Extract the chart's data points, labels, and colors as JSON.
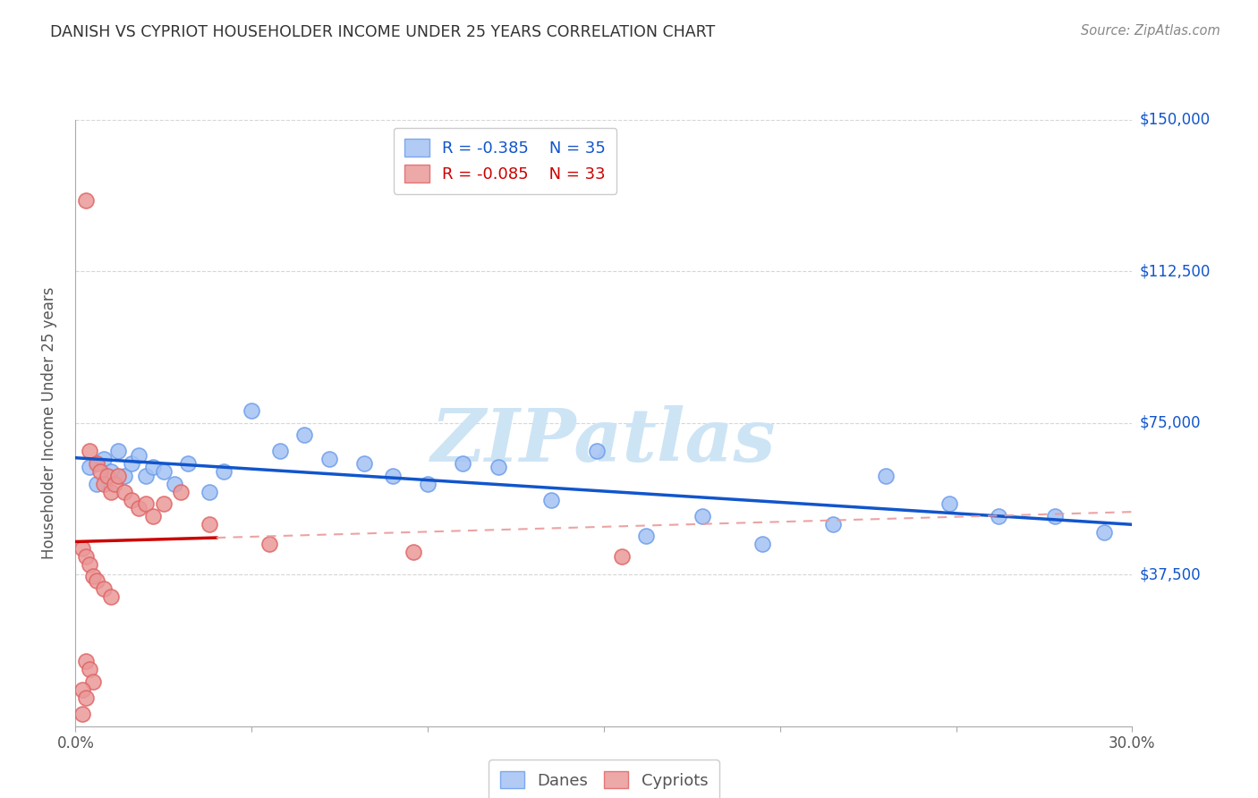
{
  "title": "DANISH VS CYPRIOT HOUSEHOLDER INCOME UNDER 25 YEARS CORRELATION CHART",
  "source": "Source: ZipAtlas.com",
  "ylabel": "Householder Income Under 25 years",
  "xlim": [
    0.0,
    0.3
  ],
  "ylim": [
    0,
    150000
  ],
  "yticks": [
    0,
    37500,
    75000,
    112500,
    150000
  ],
  "ytick_labels": [
    "",
    "$37,500",
    "$75,000",
    "$112,500",
    "$150,000"
  ],
  "xticks": [
    0.0,
    0.05,
    0.1,
    0.15,
    0.2,
    0.25,
    0.3
  ],
  "xtick_labels": [
    "0.0%",
    "",
    "",
    "",
    "",
    "",
    "30.0%"
  ],
  "danish_R": -0.385,
  "danish_N": 35,
  "cypriot_R": -0.085,
  "cypriot_N": 33,
  "danish_color": "#a4c2f4",
  "danish_edge_color": "#6d9eeb",
  "cypriot_color": "#ea9999",
  "cypriot_edge_color": "#e06666",
  "trendline_danish_color": "#1155cc",
  "trendline_cypriot_solid_color": "#cc0000",
  "trendline_cypriot_dashed_color": "#ea9999",
  "danes_x": [
    0.004,
    0.006,
    0.008,
    0.01,
    0.012,
    0.014,
    0.016,
    0.018,
    0.02,
    0.022,
    0.025,
    0.028,
    0.032,
    0.038,
    0.042,
    0.05,
    0.058,
    0.065,
    0.072,
    0.082,
    0.09,
    0.1,
    0.11,
    0.12,
    0.135,
    0.148,
    0.162,
    0.178,
    0.195,
    0.215,
    0.23,
    0.248,
    0.262,
    0.278,
    0.292
  ],
  "danes_y": [
    64000,
    60000,
    66000,
    63000,
    68000,
    62000,
    65000,
    67000,
    62000,
    64000,
    63000,
    60000,
    65000,
    58000,
    63000,
    78000,
    68000,
    72000,
    66000,
    65000,
    62000,
    60000,
    65000,
    64000,
    56000,
    68000,
    47000,
    52000,
    45000,
    50000,
    62000,
    55000,
    52000,
    52000,
    48000
  ],
  "cypriots_x": [
    0.003,
    0.004,
    0.006,
    0.007,
    0.008,
    0.009,
    0.01,
    0.011,
    0.012,
    0.014,
    0.016,
    0.018,
    0.02,
    0.022,
    0.025,
    0.03,
    0.038,
    0.055,
    0.096,
    0.155,
    0.002,
    0.003,
    0.004,
    0.005,
    0.006,
    0.008,
    0.01,
    0.003,
    0.004,
    0.005,
    0.002,
    0.003,
    0.002
  ],
  "cypriots_y": [
    130000,
    68000,
    65000,
    63000,
    60000,
    62000,
    58000,
    60000,
    62000,
    58000,
    56000,
    54000,
    55000,
    52000,
    55000,
    58000,
    50000,
    45000,
    43000,
    42000,
    44000,
    42000,
    40000,
    37000,
    36000,
    34000,
    32000,
    16000,
    14000,
    11000,
    9000,
    7000,
    3000
  ],
  "background_color": "#ffffff",
  "grid_color": "#cccccc",
  "watermark_text": "ZIPatlas",
  "watermark_color": "#cde4f5"
}
